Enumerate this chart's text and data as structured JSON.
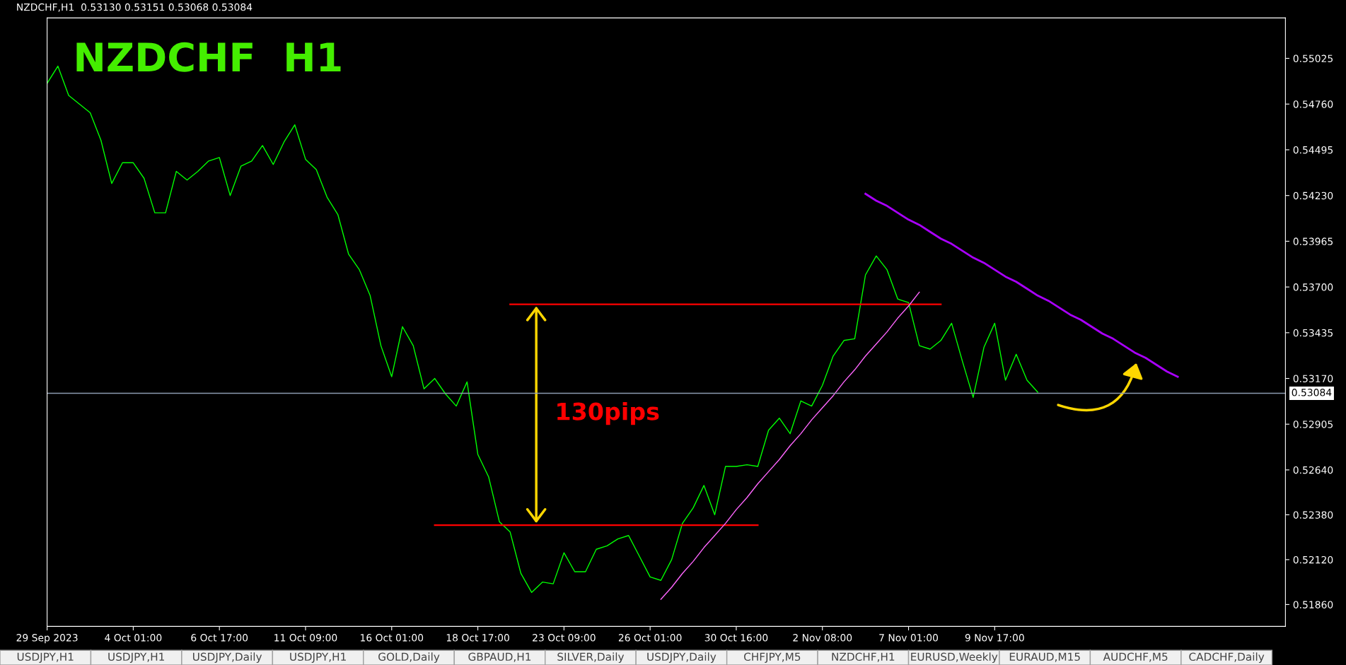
{
  "chart_data": {
    "type": "line",
    "title": "NZDCHF  H1",
    "subtitle": "NZDCHF,H1  0.53130 0.53151 0.53068 0.53084",
    "categories": [
      "29 Sep 2023",
      null,
      null,
      null,
      null,
      null,
      null,
      null,
      "4 Oct 01:00",
      null,
      null,
      null,
      null,
      null,
      null,
      null,
      "6 Oct 17:00",
      null,
      null,
      null,
      null,
      null,
      null,
      null,
      "11 Oct 09:00",
      null,
      null,
      null,
      null,
      null,
      null,
      null,
      "16 Oct 01:00",
      null,
      null,
      null,
      null,
      null,
      null,
      null,
      "18 Oct 17:00",
      null,
      null,
      null,
      null,
      null,
      null,
      null,
      "23 Oct 09:00",
      null,
      null,
      null,
      null,
      null,
      null,
      null,
      "26 Oct 01:00",
      null,
      null,
      null,
      null,
      null,
      null,
      null,
      "30 Oct 16:00",
      null,
      null,
      null,
      null,
      null,
      null,
      null,
      "2 Nov 08:00",
      null,
      null,
      null,
      null,
      null,
      null,
      null,
      "7 Nov 01:00",
      null,
      null,
      null,
      null,
      null,
      null,
      null,
      "9 Nov 17:00",
      null,
      null,
      null,
      null,
      null,
      null,
      null,
      null,
      null,
      null,
      null,
      null,
      null,
      null,
      null,
      null,
      null,
      null,
      null,
      null,
      null,
      null,
      null,
      null,
      null,
      null,
      null
    ],
    "ylim": [
      0.51733,
      0.55259
    ],
    "yticks": [
      {
        "value": 0.55025,
        "label": "0.55025"
      },
      {
        "value": 0.5476,
        "label": "0.54760"
      },
      {
        "value": 0.54495,
        "label": "0.54495"
      },
      {
        "value": 0.5423,
        "label": "0.54230"
      },
      {
        "value": 0.53965,
        "label": "0.53965"
      },
      {
        "value": 0.537,
        "label": "0.53700"
      },
      {
        "value": 0.53435,
        "label": "0.53435"
      },
      {
        "value": 0.5317,
        "label": "0.53170"
      },
      {
        "value": 0.52905,
        "label": "0.52905"
      },
      {
        "value": 0.5264,
        "label": "0.52640"
      },
      {
        "value": 0.5238,
        "label": "0.52380"
      },
      {
        "value": 0.5212,
        "label": "0.52120"
      },
      {
        "value": 0.5186,
        "label": "0.51860"
      }
    ],
    "grid": false,
    "line_style": "solid",
    "marker": "none",
    "ref_lines": [
      {
        "axis": "y",
        "value": 0.53084,
        "label": "0.53084",
        "color": "#8c9bb0"
      }
    ],
    "series": [
      {
        "color": "#00ff00",
        "values": [
          0.5488,
          0.5498,
          0.5481,
          0.5476,
          0.5471,
          0.5455,
          0.543,
          0.5442,
          0.5442,
          0.5433,
          0.5413,
          0.5413,
          0.5437,
          0.5432,
          0.5437,
          0.5443,
          0.5445,
          0.5423,
          0.544,
          0.5443,
          0.5452,
          0.5441,
          0.5454,
          0.5464,
          0.5444,
          0.5438,
          0.5422,
          0.5412,
          0.5389,
          0.538,
          0.5365,
          0.5336,
          0.5318,
          0.5347,
          0.5336,
          0.5311,
          0.5317,
          0.5308,
          0.5301,
          0.5315,
          0.5273,
          0.526,
          0.5234,
          0.5228,
          0.5204,
          0.5193,
          0.5199,
          0.5198,
          0.5216,
          0.5205,
          0.5205,
          0.5218,
          0.522,
          0.5224,
          0.5226,
          0.5214,
          0.5202,
          0.52,
          0.5212,
          0.5233,
          0.5242,
          0.5255,
          0.5238,
          0.5266,
          0.5266,
          0.5267,
          0.5266,
          0.5287,
          0.5294,
          0.5285,
          0.5304,
          0.5301,
          0.5313,
          0.533,
          0.5339,
          0.534,
          0.5377,
          0.5388,
          0.538,
          0.5363,
          0.5361,
          0.5336,
          0.5334,
          0.5339,
          0.5349,
          0.5327,
          0.5306,
          0.5335,
          0.5349,
          0.5316,
          0.5331,
          0.5316,
          0.5309,
          null,
          null,
          null,
          null,
          null,
          null,
          null,
          null,
          null,
          null,
          null,
          null,
          null,
          null,
          null,
          null,
          null,
          null,
          null,
          null,
          null,
          null,
          null
        ]
      },
      {
        "color": "#ff0000",
        "values": [
          null,
          null,
          null,
          null,
          null,
          null,
          null,
          null,
          null,
          null,
          null,
          null,
          null,
          null,
          null,
          null,
          null,
          null,
          null,
          null,
          null,
          null,
          null,
          null,
          null,
          null,
          null,
          null,
          null,
          null,
          null,
          null,
          null,
          null,
          null,
          null,
          0.5232,
          0.5232,
          0.5232,
          0.5232,
          0.5232,
          0.5232,
          0.5232,
          0.5232,
          0.5232,
          0.5232,
          0.5232,
          0.5232,
          0.5232,
          0.5232,
          0.5232,
          0.5232,
          0.5232,
          0.5232,
          0.5232,
          0.5232,
          0.5232,
          0.5232,
          0.5232,
          0.5232,
          0.5232,
          0.5232,
          0.5232,
          0.5232,
          0.5232,
          0.5232,
          0.5232,
          null,
          null,
          null,
          null,
          null,
          null,
          null,
          null,
          null,
          null,
          null,
          null,
          null,
          null,
          null,
          null,
          null,
          null,
          null,
          null,
          null,
          null,
          null,
          null,
          null,
          null,
          null,
          null,
          null,
          null,
          null,
          null,
          null,
          null,
          null,
          null,
          null,
          null,
          null,
          null,
          null,
          null,
          null,
          null,
          null,
          null,
          null,
          null,
          null
        ]
      },
      {
        "color": "#ff0000",
        "values": [
          null,
          null,
          null,
          null,
          null,
          null,
          null,
          null,
          null,
          null,
          null,
          null,
          null,
          null,
          null,
          null,
          null,
          null,
          null,
          null,
          null,
          null,
          null,
          null,
          null,
          null,
          null,
          null,
          null,
          null,
          null,
          null,
          null,
          null,
          null,
          null,
          null,
          null,
          null,
          null,
          null,
          null,
          null,
          0.536,
          0.536,
          0.536,
          0.536,
          0.536,
          0.536,
          0.536,
          0.536,
          0.536,
          0.536,
          0.536,
          0.536,
          0.536,
          0.536,
          0.536,
          0.536,
          0.536,
          0.536,
          0.536,
          0.536,
          0.536,
          0.536,
          0.536,
          0.536,
          0.536,
          0.536,
          0.536,
          0.536,
          0.536,
          0.536,
          0.536,
          0.536,
          0.536,
          0.536,
          0.536,
          0.536,
          0.536,
          0.536,
          0.536,
          0.536,
          0.536,
          null,
          null,
          null,
          null,
          null,
          null,
          null,
          null,
          null,
          null,
          null,
          null,
          null,
          null,
          null,
          null,
          null,
          null,
          null,
          null,
          null,
          null,
          null,
          null,
          null,
          null,
          null,
          null,
          null,
          null,
          null,
          null
        ]
      },
      {
        "color": "#ff66ff",
        "values": [
          null,
          null,
          null,
          null,
          null,
          null,
          null,
          null,
          null,
          null,
          null,
          null,
          null,
          null,
          null,
          null,
          null,
          null,
          null,
          null,
          null,
          null,
          null,
          null,
          null,
          null,
          null,
          null,
          null,
          null,
          null,
          null,
          null,
          null,
          null,
          null,
          null,
          null,
          null,
          null,
          null,
          null,
          null,
          null,
          null,
          null,
          null,
          null,
          null,
          null,
          null,
          null,
          null,
          null,
          null,
          null,
          null,
          0.5189,
          0.5196,
          0.5204,
          0.5211,
          0.5219,
          0.5226,
          0.5233,
          0.5241,
          0.5248,
          0.5256,
          0.5263,
          0.527,
          0.5278,
          0.5285,
          0.5293,
          0.53,
          0.5307,
          0.5315,
          0.5322,
          0.533,
          0.5337,
          0.5344,
          0.5352,
          0.5359,
          0.5367,
          null,
          null,
          null,
          null,
          null,
          null,
          null,
          null,
          null,
          null,
          null,
          null,
          null,
          null,
          null,
          null,
          null,
          null,
          null,
          null,
          null,
          null,
          null,
          null,
          null,
          null,
          null,
          null,
          null,
          null,
          null,
          null,
          null,
          null
        ]
      },
      {
        "color": "#aa00ff",
        "values": [
          null,
          null,
          null,
          null,
          null,
          null,
          null,
          null,
          null,
          null,
          null,
          null,
          null,
          null,
          null,
          null,
          null,
          null,
          null,
          null,
          null,
          null,
          null,
          null,
          null,
          null,
          null,
          null,
          null,
          null,
          null,
          null,
          null,
          null,
          null,
          null,
          null,
          null,
          null,
          null,
          null,
          null,
          null,
          null,
          null,
          null,
          null,
          null,
          null,
          null,
          null,
          null,
          null,
          null,
          null,
          null,
          null,
          null,
          null,
          null,
          null,
          null,
          null,
          null,
          null,
          null,
          null,
          null,
          null,
          null,
          null,
          null,
          null,
          null,
          null,
          null,
          0.5424,
          0.542,
          0.5417,
          0.5413,
          0.5409,
          0.5406,
          0.5402,
          0.5398,
          0.5395,
          0.5391,
          0.5387,
          0.5384,
          0.538,
          0.5376,
          0.5373,
          0.5369,
          0.5365,
          0.5362,
          0.5358,
          0.5354,
          0.5351,
          0.5347,
          0.5343,
          0.534,
          0.5336,
          0.5332,
          0.5329,
          0.5325,
          0.5321,
          0.5318,
          null,
          null,
          null,
          null,
          null,
          null,
          null,
          null,
          null,
          null
        ]
      }
    ],
    "annotations": [
      "130pips",
      "USDJPY,H1",
      "USDJPY,H1",
      "USDJPY,Daily",
      "USDJPY,H1",
      "GOLD,Daily",
      "GBPAUD,H1",
      "SILVER,Daily",
      "USDJPY,Daily",
      "CHFJPY,M5",
      "NZDCHF,H1",
      "EURUSD,Weekly",
      "EURAUD,M15",
      "AUDCHF,M5",
      "CADCHF,Daily"
    ]
  }
}
